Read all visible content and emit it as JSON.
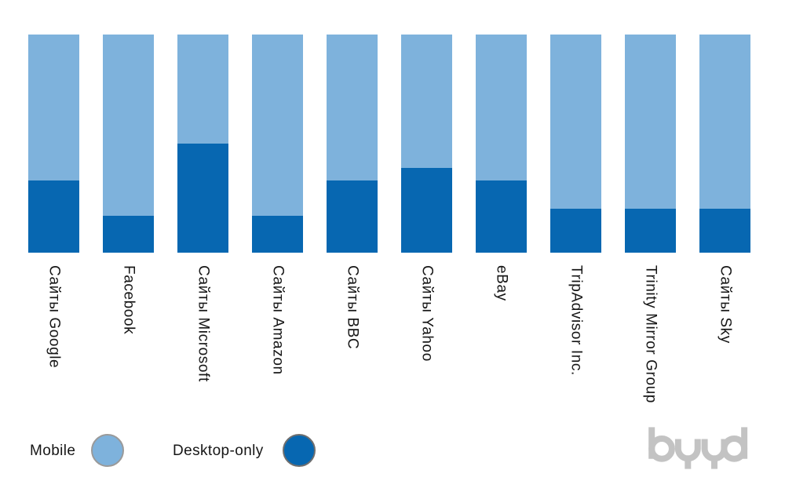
{
  "chart_data": {
    "type": "bar",
    "subtype": "stacked-percent",
    "orientation": "vertical",
    "title": "",
    "xlabel": "",
    "ylabel": "",
    "ylim": [
      0,
      100
    ],
    "grid": false,
    "axes_visible": false,
    "category_label_rotation": "vertical-90cw",
    "legend_position": "bottom-left",
    "categories": [
      "Сайты Google",
      "Facebook",
      "Сайты Microsoft",
      "Сайты Amazon",
      "Сайты BBC",
      "Сайты Yahoo",
      "eBay",
      "TripAdvisor Inc.",
      "Trinity Mirror Group",
      "Сайты Sky"
    ],
    "series": [
      {
        "name": "Mobile",
        "color": "#7EB2DC",
        "values": [
          67,
          83,
          50,
          83,
          67,
          61,
          67,
          80,
          80,
          80
        ]
      },
      {
        "name": "Desktop-only",
        "color": "#0767B1",
        "values": [
          33,
          17,
          50,
          17,
          33,
          39,
          33,
          20,
          20,
          20
        ]
      }
    ]
  },
  "legend": {
    "items": [
      {
        "label": "Mobile",
        "color": "#7EB2DC",
        "border_color": "#9A9A9A"
      },
      {
        "label": "Desktop-only",
        "color": "#0767B1",
        "border_color": "#6F6F6F"
      }
    ]
  },
  "branding": {
    "logo_text": "byyd",
    "color": "#C3C3C3"
  }
}
